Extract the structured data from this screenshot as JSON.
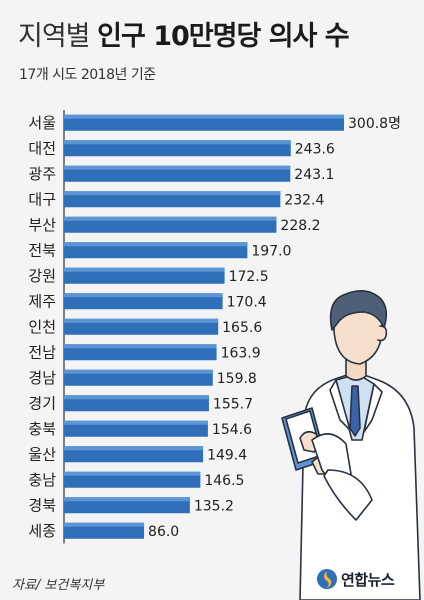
{
  "title_light": "지역별",
  "title_bold": "인구 10만명당 의사 수",
  "subtitle": "17개 시도 2018년 기준",
  "source": "자료/ 보건복지부",
  "logo": "연합뉴스",
  "colors": {
    "bar": "#2f6eb8",
    "bar_light": "#5b95d6",
    "axis": "#333333"
  },
  "chart_data": {
    "type": "bar",
    "orientation": "horizontal",
    "categories": [
      "서울",
      "대전",
      "광주",
      "대구",
      "부산",
      "전북",
      "강원",
      "제주",
      "인천",
      "전남",
      "경남",
      "경기",
      "충북",
      "울산",
      "충남",
      "경북",
      "세종"
    ],
    "values": [
      300.8,
      243.6,
      243.1,
      232.4,
      228.2,
      197.0,
      172.5,
      170.4,
      165.6,
      163.9,
      159.8,
      155.7,
      154.6,
      149.4,
      146.5,
      135.2,
      86.0
    ],
    "value_labels": [
      "300.8명",
      "243.6",
      "243.1",
      "232.4",
      "228.2",
      "197.0",
      "172.5",
      "170.4",
      "165.6",
      "163.9",
      "159.8",
      "155.7",
      "154.6",
      "149.4",
      "146.5",
      "135.2",
      "86.0"
    ],
    "unit": "명",
    "xlim": [
      0,
      300.8
    ]
  }
}
